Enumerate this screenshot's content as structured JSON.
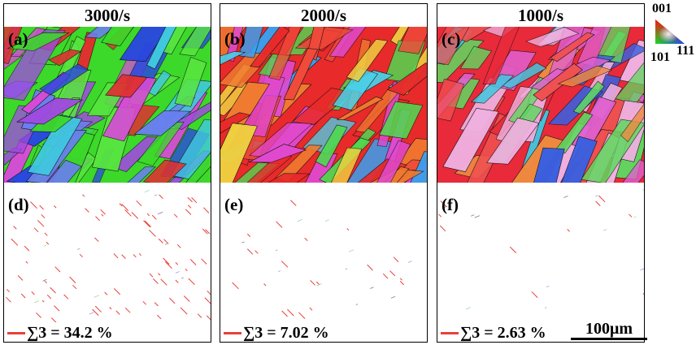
{
  "figure": {
    "columns": [
      {
        "title": "3000/s",
        "top_label": "(a)",
        "bottom_label": "(d)",
        "sigma_text": "∑3 = 34.2 %",
        "palette": [
          "#3cd82a",
          "#58e640",
          "#2a48e0",
          "#6a7ff0",
          "#a04ae0",
          "#d84ad8",
          "#e03030",
          "#40c8e0"
        ]
      },
      {
        "title": "2000/s",
        "top_label": "(b)",
        "bottom_label": "(e)",
        "sigma_text": "∑3 = 7.02 %",
        "palette": [
          "#e82a2a",
          "#f04a3a",
          "#f07a30",
          "#e04ad0",
          "#4ad0e8",
          "#3aa0f0",
          "#50d850",
          "#f0d040"
        ]
      },
      {
        "title": "1000/s",
        "top_label": "(c)",
        "bottom_label": "(f)",
        "sigma_text": "∑3 = 2.63 %",
        "palette": [
          "#e82a3a",
          "#f05050",
          "#f08a40",
          "#e060d0",
          "#40c8e0",
          "#60d860",
          "#f0b0e0",
          "#3a60e0"
        ]
      }
    ],
    "ipf_legend": {
      "top": "001",
      "left": "101",
      "right": "111"
    },
    "scale_bar": "100μm",
    "colors": {
      "twin_boundary": "#e8403a",
      "grain_boundary": "#000000"
    }
  }
}
